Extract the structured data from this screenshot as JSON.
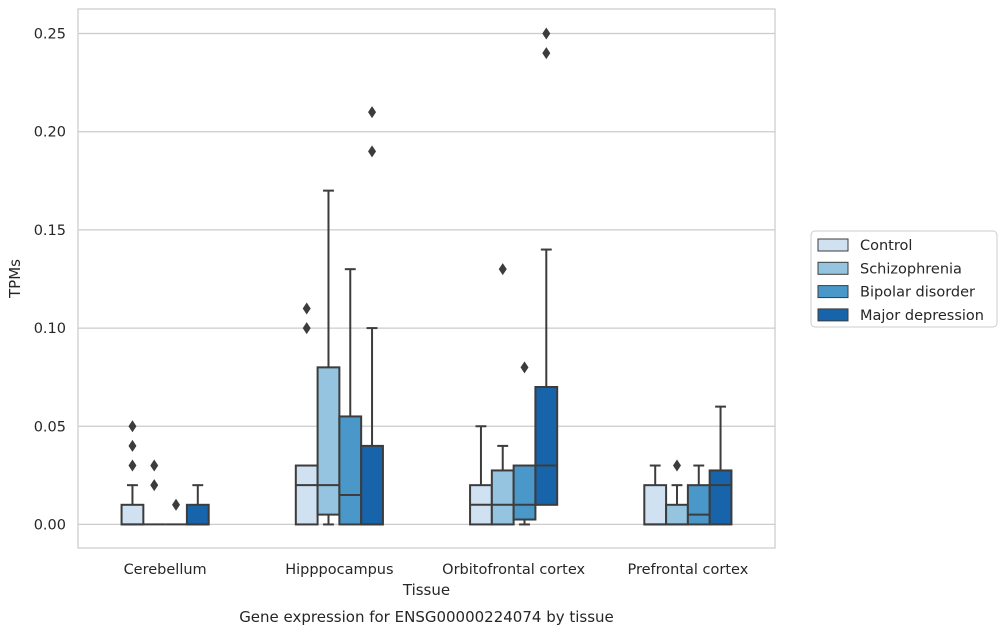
{
  "chart_data": {
    "type": "boxplot",
    "title": "Gene expression for ENSG00000224074 by tissue",
    "xlabel": "Tissue",
    "ylabel": "TPMs",
    "ylim": [
      -0.012,
      0.2625
    ],
    "yticks": [
      "0.00",
      "0.05",
      "0.10",
      "0.15",
      "0.20",
      "0.25"
    ],
    "ytick_values": [
      0,
      0.05,
      0.1,
      0.15,
      0.2,
      0.25
    ],
    "grid": true,
    "legend_position": "right",
    "categories": [
      "Cerebellum",
      "Hipppocampus",
      "Orbitofrontal cortex",
      "Prefrontal cortex"
    ],
    "series": [
      {
        "name": "Control",
        "color": "#d0e1f2",
        "boxes": [
          {
            "whislo": 0,
            "q1": 0,
            "med": 0,
            "q3": 0.01,
            "whishi": 0.02,
            "fliers": [
              0.03,
              0.04,
              0.05
            ]
          },
          {
            "whislo": 0,
            "q1": 0,
            "med": 0.02,
            "q3": 0.03,
            "whishi": 0.03,
            "fliers": [
              0.1,
              0.11
            ]
          },
          {
            "whislo": 0,
            "q1": 0,
            "med": 0.01,
            "q3": 0.02,
            "whishi": 0.05,
            "fliers": []
          },
          {
            "whislo": 0,
            "q1": 0,
            "med": 0,
            "q3": 0.02,
            "whishi": 0.03,
            "fliers": []
          }
        ]
      },
      {
        "name": "Schizophrenia",
        "color": "#94c4df",
        "boxes": [
          {
            "whislo": 0,
            "q1": 0,
            "med": 0,
            "q3": 0,
            "whishi": 0,
            "fliers": [
              0.02,
              0.03
            ]
          },
          {
            "whislo": 0,
            "q1": 0.005,
            "med": 0.02,
            "q3": 0.08,
            "whishi": 0.17,
            "fliers": []
          },
          {
            "whislo": 0,
            "q1": 0,
            "med": 0.01,
            "q3": 0.0275,
            "whishi": 0.04,
            "fliers": [
              0.13
            ]
          },
          {
            "whislo": 0,
            "q1": 0,
            "med": 0,
            "q3": 0.01,
            "whishi": 0.02,
            "fliers": [
              0.03
            ]
          }
        ]
      },
      {
        "name": "Bipolar disorder",
        "color": "#4a98c9",
        "boxes": [
          {
            "whislo": 0,
            "q1": 0,
            "med": 0,
            "q3": 0,
            "whishi": 0,
            "fliers": [
              0.01
            ]
          },
          {
            "whislo": 0,
            "q1": 0,
            "med": 0.015,
            "q3": 0.055,
            "whishi": 0.13,
            "fliers": []
          },
          {
            "whislo": 0,
            "q1": 0.0025,
            "med": 0.01,
            "q3": 0.03,
            "whishi": 0.03,
            "fliers": [
              0.08
            ]
          },
          {
            "whislo": 0,
            "q1": 0,
            "med": 0.005,
            "q3": 0.02,
            "whishi": 0.03,
            "fliers": []
          }
        ]
      },
      {
        "name": "Major depression",
        "color": "#1764ab",
        "boxes": [
          {
            "whislo": 0,
            "q1": 0,
            "med": 0,
            "q3": 0.01,
            "whishi": 0.02,
            "fliers": []
          },
          {
            "whislo": 0,
            "q1": 0,
            "med": 0,
            "q3": 0.04,
            "whishi": 0.1,
            "fliers": [
              0.19,
              0.21
            ]
          },
          {
            "whislo": 0.01,
            "q1": 0.01,
            "med": 0.03,
            "q3": 0.07,
            "whishi": 0.14,
            "fliers": [
              0.24,
              0.25
            ]
          },
          {
            "whislo": 0,
            "q1": 0,
            "med": 0.02,
            "q3": 0.0275,
            "whishi": 0.06,
            "fliers": []
          }
        ]
      }
    ]
  }
}
